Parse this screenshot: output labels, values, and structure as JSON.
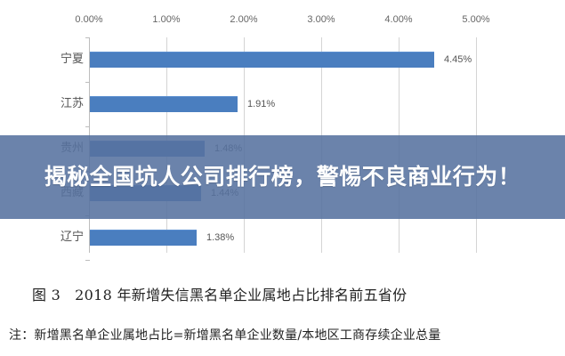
{
  "chart_data": {
    "type": "bar",
    "orientation": "horizontal",
    "title": "2018 年新增失信黑名单企业属地占比排名前五省份",
    "figure_label": "图 3",
    "xlabel": "",
    "ylabel": "",
    "xlim": [
      0,
      5
    ],
    "x_ticks": [
      "0.00%",
      "1.00%",
      "2.00%",
      "3.00%",
      "4.00%",
      "5.00%"
    ],
    "x_axis_position": "top",
    "grid": true,
    "legend": null,
    "categories": [
      "宁夏",
      "江苏",
      "贵州",
      "西藏",
      "辽宁"
    ],
    "values": [
      4.45,
      1.91,
      1.48,
      1.44,
      1.38
    ],
    "value_labels": [
      "4.45%",
      "1.91%",
      "1.48%",
      "1.44%",
      "1.38%"
    ],
    "unit": "%",
    "bar_color": "#4a7ebf",
    "note": "注：新增黑名单企业属地占比=新增黑名单企业数量/本地区工商存续企业总量"
  },
  "overlay": {
    "headline": "揭秘全国坑人公司排行榜，警惕不良商业行为！",
    "background": "#56729f"
  },
  "caption": {
    "figure_number": "图 3",
    "text": "2018 年新增失信黑名单企业属地占比排名前五省份"
  },
  "note": {
    "text": "注：新增黑名单企业属地占比=新增黑名单企业数量/本地区工商存续企业总量"
  }
}
